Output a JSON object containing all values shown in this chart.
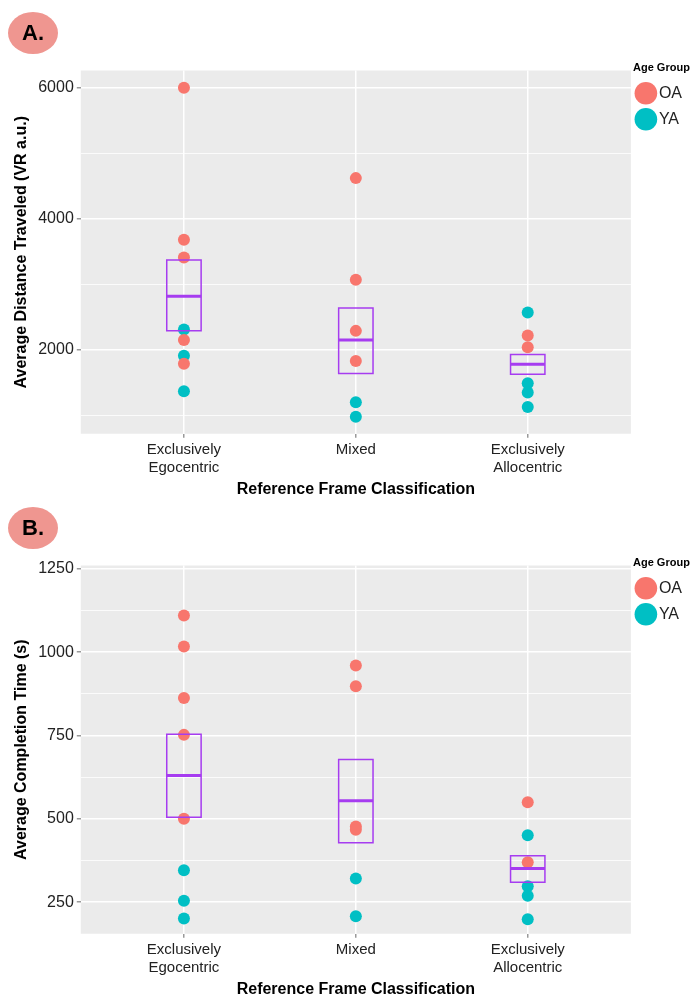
{
  "chart_data": [
    {
      "type": "box",
      "title": "A.",
      "xlabel": "Reference Frame Classification",
      "ylabel": "Average Distance Traveled (VR a.u.)",
      "legend_title": "Age Group",
      "legend": "top right",
      "grid": true,
      "marker": "circle",
      "categories": [
        "Exclusively Egocentric",
        "Mixed",
        "Exclusively Allocentric"
      ],
      "ylim": [
        720,
        6260
      ],
      "yticks": [
        {
          "value": 1000,
          "label": null
        },
        2000,
        {
          "value": 3000,
          "label": null
        },
        4000,
        {
          "value": 5000,
          "label": null
        },
        6000
      ],
      "series": [
        {
          "name": "OA",
          "type": "scatter",
          "color": "#f8766d",
          "x": [
            "Exclusively Egocentric",
            "Exclusively Egocentric",
            "Exclusively Egocentric",
            "Exclusively Egocentric",
            "Exclusively Egocentric",
            "Mixed",
            "Mixed",
            "Mixed",
            "Mixed",
            "Exclusively Allocentric",
            "Exclusively Allocentric"
          ],
          "values": [
            6000,
            3680,
            3410,
            2150,
            1790,
            4620,
            3070,
            2290,
            1830,
            2220,
            2040
          ]
        },
        {
          "name": "YA",
          "type": "scatter",
          "color": "#00bfc4",
          "x": [
            "Exclusively Egocentric",
            "Exclusively Egocentric",
            "Exclusively Egocentric",
            "Mixed",
            "Mixed",
            "Exclusively Allocentric",
            "Exclusively Allocentric",
            "Exclusively Allocentric",
            "Exclusively Allocentric",
            "Exclusively Allocentric"
          ],
          "values": [
            2310,
            1910,
            1370,
            1200,
            980,
            2570,
            null,
            1490,
            1350,
            1130
          ]
        },
        {
          "type": "box",
          "color": "#a63cf0",
          "boxes": [
            {
              "low": 2290,
              "q1": 2290,
              "median": 2820,
              "q3": 3370,
              "high": 3370
            },
            {
              "low": 1640,
              "q1": 1640,
              "median": 2150,
              "q3": 2640,
              "high": 2640
            },
            {
              "low": 1630,
              "q1": 1630,
              "median": 1780,
              "q3": 1930,
              "high": 1930
            }
          ]
        }
      ]
    },
    {
      "type": "box",
      "title": "B.",
      "xlabel": "Reference Frame Classification",
      "ylabel": "Average Completion Time (s)",
      "legend_title": "Age Group",
      "legend": "top right",
      "grid": true,
      "marker": "circle",
      "categories": [
        "Exclusively Egocentric",
        "Mixed",
        "Exclusively Allocentric"
      ],
      "ylim": [
        155,
        1260
      ],
      "yticks": [
        250,
        {
          "value": 375,
          "label": null
        },
        500,
        {
          "value": 625,
          "label": null
        },
        750,
        {
          "value": 875,
          "label": null
        },
        1000,
        {
          "value": 1125,
          "label": null
        },
        1250
      ],
      "series": [
        {
          "name": "OA",
          "type": "scatter",
          "color": "#f8766d",
          "x": [
            "Exclusively Egocentric",
            "Exclusively Egocentric",
            "Exclusively Egocentric",
            "Exclusively Egocentric",
            "Exclusively Egocentric",
            "Mixed",
            "Mixed",
            "Mixed",
            "Mixed",
            "Exclusively Allocentric",
            "Exclusively Allocentric"
          ],
          "values": [
            1110,
            1017,
            863,
            752,
            500,
            960,
            898,
            477,
            467,
            550,
            370
          ]
        },
        {
          "name": "YA",
          "type": "scatter",
          "color": "#00bfc4",
          "x": [
            "Exclusively Egocentric",
            "Exclusively Egocentric",
            "Exclusively Egocentric",
            "Mixed",
            "Mixed",
            "Exclusively Allocentric",
            "Exclusively Allocentric",
            "Exclusively Allocentric",
            "Exclusively Allocentric"
          ],
          "values": [
            346,
            254,
            201,
            321,
            208,
            451,
            298,
            269,
            199
          ]
        },
        {
          "type": "box",
          "color": "#a63cf0",
          "boxes": [
            {
              "low": 505,
              "q1": 505,
              "median": 630,
              "q3": 754,
              "high": 754
            },
            {
              "low": 428,
              "q1": 428,
              "median": 554,
              "q3": 678,
              "high": 678
            },
            {
              "low": 310,
              "q1": 310,
              "median": 351,
              "q3": 389,
              "high": 389
            }
          ]
        }
      ]
    }
  ]
}
